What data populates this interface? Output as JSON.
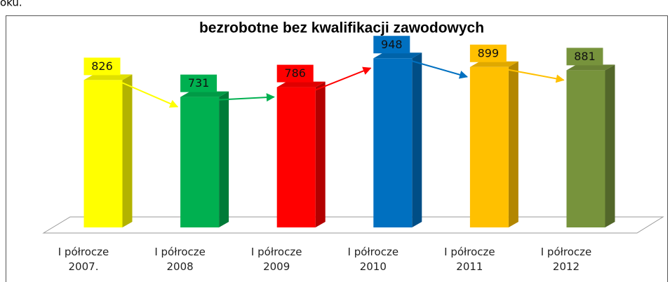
{
  "caption_fragment": "oku.",
  "chart_data": {
    "type": "bar3d",
    "title": "bezrobotne bez kwalifikacji zawodowych",
    "categories": [
      "I półrocze\n2007.",
      "I półrocze\n2008",
      "I półrocze\n2009",
      "I półrocze\n2010",
      "I półrocze\n2011",
      "I półrocze\n2012"
    ],
    "values": [
      826,
      731,
      786,
      948,
      899,
      881
    ],
    "colors": [
      "#ffff00",
      "#00b050",
      "#ff0000",
      "#0070c0",
      "#ffc000",
      "#77933c"
    ],
    "ylim": [
      0,
      1000
    ]
  }
}
